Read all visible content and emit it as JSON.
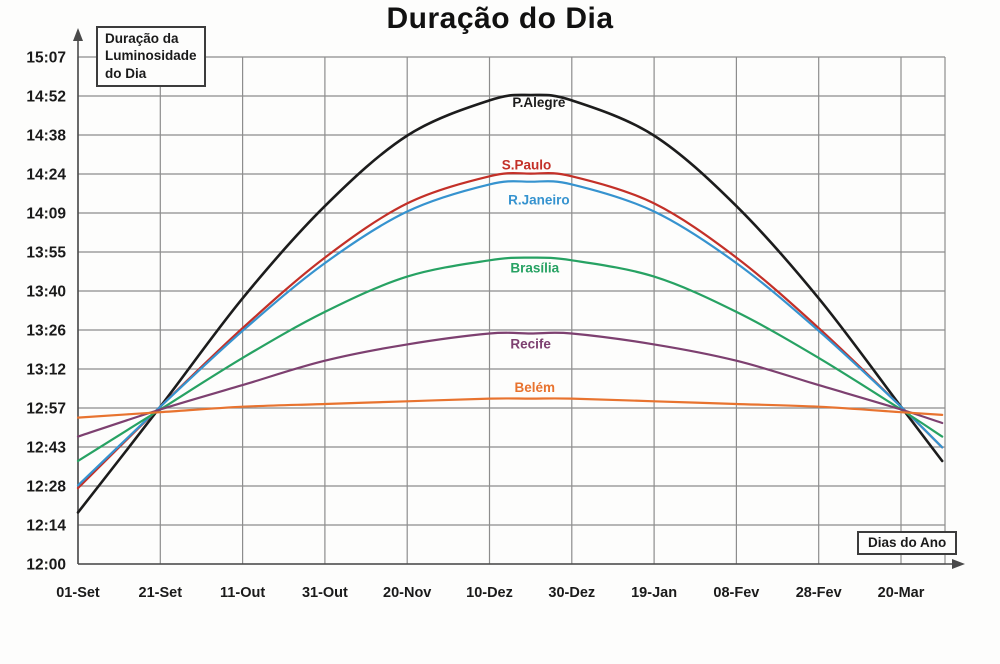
{
  "chart_data": {
    "type": "line",
    "title": "Duração do Dia",
    "ylabel": "Duração da\nLuminosidade\ndo Dia",
    "xlabel": "Dias do Ano",
    "grid": true,
    "legend_position": "inline-labels",
    "ylim": [
      "12:00",
      "15:07"
    ],
    "y_tick_labels": [
      "15:07",
      "14:52",
      "14:38",
      "14:24",
      "14:09",
      "13:55",
      "13:40",
      "13:26",
      "13:12",
      "12:57",
      "12:43",
      "12:28",
      "12:14",
      "12:00"
    ],
    "x_tick_labels": [
      "01-Set",
      "21-Set",
      "11-Out",
      "31-Out",
      "20-Nov",
      "10-Dez",
      "30-Dez",
      "19-Jan",
      "08-Fev",
      "28-Fev",
      "20-Mar"
    ],
    "x_tick_days": [
      0,
      20,
      40,
      60,
      80,
      100,
      120,
      140,
      160,
      180,
      200
    ],
    "sample_days": [
      0,
      20,
      40,
      60,
      80,
      100,
      110,
      120,
      140,
      160,
      180,
      200,
      210
    ],
    "series": [
      {
        "name": "P.Alegre",
        "color": "#1c1c1c",
        "width": 2.6,
        "durations": [
          "12:19",
          "12:58",
          "13:38",
          "14:12",
          "14:38",
          "14:51",
          "14:53",
          "14:51",
          "14:38",
          "14:12",
          "13:38",
          "12:58",
          "12:38"
        ]
      },
      {
        "name": "S.Paulo",
        "color": "#c33028",
        "width": 2.2,
        "durations": [
          "12:28",
          "12:58",
          "13:27",
          "13:53",
          "14:13",
          "14:23",
          "14:24",
          "14:23",
          "14:13",
          "13:53",
          "13:27",
          "12:58",
          "12:43"
        ]
      },
      {
        "name": "R.Janeiro",
        "color": "#3693cf",
        "width": 2.2,
        "durations": [
          "12:29",
          "12:58",
          "13:26",
          "13:51",
          "14:10",
          "14:20",
          "14:21",
          "14:20",
          "14:10",
          "13:51",
          "13:26",
          "12:58",
          "12:43"
        ]
      },
      {
        "name": "Brasília",
        "color": "#27a263",
        "width": 2.2,
        "durations": [
          "12:38",
          "12:57",
          "13:16",
          "13:33",
          "13:46",
          "13:52",
          "13:53",
          "13:52",
          "13:46",
          "13:33",
          "13:16",
          "12:57",
          "12:47"
        ]
      },
      {
        "name": "Recife",
        "color": "#7d4070",
        "width": 2.2,
        "durations": [
          "12:47",
          "12:57",
          "13:06",
          "13:15",
          "13:21",
          "13:25",
          "13:25",
          "13:25",
          "13:21",
          "13:15",
          "13:06",
          "12:57",
          "12:52"
        ]
      },
      {
        "name": "Belém",
        "color": "#e8732f",
        "width": 2.2,
        "durations": [
          "12:54",
          "12:56",
          "12:58",
          "12:59",
          "13:00",
          "13:01",
          "13:01",
          "13:01",
          "13:00",
          "12:59",
          "12:58",
          "12:56",
          "12:55"
        ]
      }
    ],
    "curve_labels": [
      {
        "text": "P.Alegre",
        "color": "#1c1c1c",
        "day": 112,
        "duration": "14:50"
      },
      {
        "text": "S.Paulo",
        "color": "#c33028",
        "day": 109,
        "duration": "14:27"
      },
      {
        "text": "R.Janeiro",
        "color": "#3693cf",
        "day": 112,
        "duration": "14:14"
      },
      {
        "text": "Brasília",
        "color": "#27a263",
        "day": 111,
        "duration": "13:49"
      },
      {
        "text": "Recife",
        "color": "#7d4070",
        "day": 110,
        "duration": "13:21"
      },
      {
        "text": "Belém",
        "color": "#e8732f",
        "day": 111,
        "duration": "13:05"
      }
    ]
  }
}
